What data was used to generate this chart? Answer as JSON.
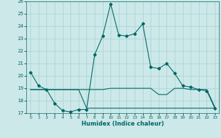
{
  "xlabel": "Humidex (Indice chaleur)",
  "bg_color": "#cce8e8",
  "grid_color": "#add4d4",
  "line_color": "#006666",
  "x_values": [
    0,
    1,
    2,
    3,
    4,
    5,
    6,
    7,
    8,
    9,
    10,
    11,
    12,
    13,
    14,
    15,
    16,
    17,
    18,
    19,
    20,
    21,
    22,
    23
  ],
  "series1": [
    20.3,
    19.2,
    18.9,
    17.8,
    17.2,
    17.1,
    17.3,
    17.3,
    21.7,
    23.2,
    25.8,
    23.3,
    23.2,
    23.4,
    24.2,
    20.7,
    20.6,
    21.0,
    20.2,
    19.2,
    19.1,
    18.9,
    18.8,
    17.4
  ],
  "series2": [
    18.9,
    18.9,
    18.9,
    18.9,
    18.9,
    18.9,
    18.9,
    18.9,
    18.9,
    18.9,
    19.0,
    19.0,
    19.0,
    19.0,
    19.0,
    19.0,
    18.5,
    18.5,
    19.0,
    19.0,
    18.9,
    18.9,
    18.9,
    17.5
  ],
  "series3": [
    18.9,
    18.9,
    18.9,
    18.9,
    18.9,
    18.9,
    18.9,
    17.4,
    17.4,
    17.4,
    17.4,
    17.4,
    17.4,
    17.4,
    17.4,
    17.4,
    17.4,
    17.4,
    17.4,
    17.4,
    17.4,
    17.4,
    17.4,
    17.4
  ],
  "ylim": [
    17,
    26
  ],
  "xlim_min": -0.5,
  "xlim_max": 23.5,
  "yticks": [
    17,
    18,
    19,
    20,
    21,
    22,
    23,
    24,
    25,
    26
  ],
  "xticks": [
    0,
    1,
    2,
    3,
    4,
    5,
    6,
    7,
    8,
    9,
    10,
    11,
    12,
    13,
    14,
    15,
    16,
    17,
    18,
    19,
    20,
    21,
    22,
    23
  ]
}
